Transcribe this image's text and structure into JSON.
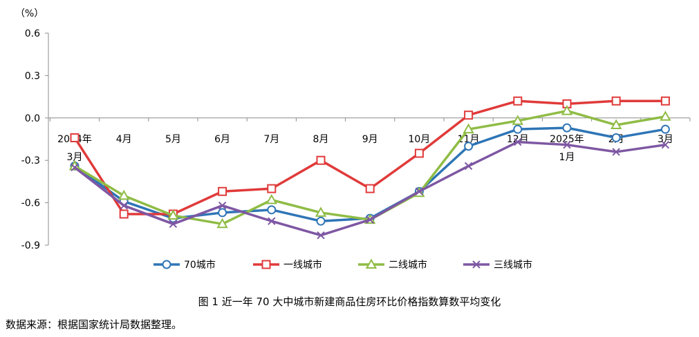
{
  "chart_data": {
    "type": "line",
    "ylabel": "（%）",
    "ylim": [
      -0.9,
      0.6
    ],
    "yticks": [
      0.6,
      0.3,
      0.0,
      -0.3,
      -0.6,
      -0.9
    ],
    "ytick_labels": [
      "0.6",
      "0.3",
      "0.0",
      "-0.3",
      "-0.6",
      "-0.9"
    ],
    "categories": [
      [
        "2024年",
        "3月"
      ],
      [
        "4月"
      ],
      [
        "5月"
      ],
      [
        "6月"
      ],
      [
        "7月"
      ],
      [
        "8月"
      ],
      [
        "9月"
      ],
      [
        "10月"
      ],
      [
        "11月"
      ],
      [
        "12月"
      ],
      [
        "2025年",
        "1月"
      ],
      [
        "2月"
      ],
      [
        "3月"
      ]
    ],
    "series": [
      {
        "name": "70城市",
        "color": "#2e75b6",
        "marker": "circle",
        "values": [
          -0.34,
          -0.59,
          -0.71,
          -0.67,
          -0.65,
          -0.73,
          -0.71,
          -0.52,
          -0.2,
          -0.08,
          -0.07,
          -0.14,
          -0.08
        ]
      },
      {
        "name": "一线城市",
        "color": "#e03a3a",
        "marker": "square",
        "values": [
          -0.14,
          -0.68,
          -0.68,
          -0.52,
          -0.5,
          -0.3,
          -0.5,
          -0.25,
          0.02,
          0.12,
          0.1,
          0.12,
          0.12
        ]
      },
      {
        "name": "二线城市",
        "color": "#8fbc45",
        "marker": "triangle",
        "values": [
          -0.34,
          -0.55,
          -0.69,
          -0.75,
          -0.58,
          -0.67,
          -0.72,
          -0.53,
          -0.08,
          -0.02,
          0.05,
          -0.05,
          0.01
        ]
      },
      {
        "name": "三线城市",
        "color": "#7e57a3",
        "marker": "x",
        "values": [
          -0.35,
          -0.62,
          -0.75,
          -0.62,
          -0.73,
          -0.83,
          -0.72,
          -0.52,
          -0.34,
          -0.17,
          -0.19,
          -0.24,
          -0.19
        ]
      }
    ],
    "legend_position": "bottom"
  },
  "caption": "图 1 近一年 70 大中城市新建商品住房环比价格指数算数平均变化",
  "source": "数据来源：根据国家统计局数据整理。"
}
